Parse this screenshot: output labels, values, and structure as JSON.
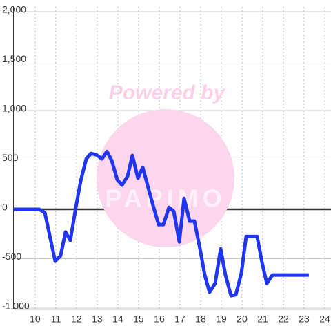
{
  "chart_data": {
    "type": "line",
    "watermark": {
      "text": "Powered by",
      "logo": "PAPIMO"
    },
    "x": [
      8.97,
      10.2,
      10.47,
      10.97,
      11.23,
      11.47,
      11.7,
      11.97,
      12.2,
      12.47,
      12.7,
      12.97,
      13.23,
      13.47,
      13.7,
      13.97,
      14.2,
      14.47,
      14.7,
      14.97,
      15.2,
      15.47,
      15.7,
      15.97,
      16.2,
      16.47,
      16.7,
      16.97,
      17.2,
      17.47,
      17.7,
      17.97,
      18.2,
      18.43,
      18.7,
      18.97,
      19.2,
      19.47,
      19.7,
      19.97,
      20.2,
      20.47,
      20.73,
      20.97,
      21.2,
      21.47,
      21.7,
      23.23
    ],
    "series": [
      {
        "color": "#1f35f0",
        "values": [
          0,
          0,
          -35,
          -525,
          -470,
          -230,
          -315,
          20,
          285,
          510,
          565,
          550,
          510,
          585,
          495,
          300,
          245,
          335,
          545,
          315,
          425,
          215,
          40,
          -155,
          -155,
          20,
          -20,
          -330,
          110,
          -120,
          -120,
          -400,
          -665,
          -840,
          -750,
          -400,
          -665,
          -875,
          -865,
          -645,
          -275,
          -275,
          -275,
          -540,
          -750,
          -665,
          -665,
          -665
        ]
      }
    ],
    "xlim": [
      8.97,
      24.3
    ],
    "xticks": [
      10,
      11,
      12,
      13,
      14,
      15,
      16,
      17,
      18,
      19,
      20,
      21,
      22,
      23,
      24
    ],
    "ylim": [
      -1000,
      2000
    ],
    "yticks": [
      {
        "value": -1000,
        "label": "-1,000"
      },
      -500,
      0,
      500,
      {
        "value": 1000,
        "label": "1,000"
      },
      {
        "value": 1500,
        "label": "1,500"
      },
      {
        "value": 2000,
        "label": "2,000"
      }
    ],
    "grid": true
  }
}
